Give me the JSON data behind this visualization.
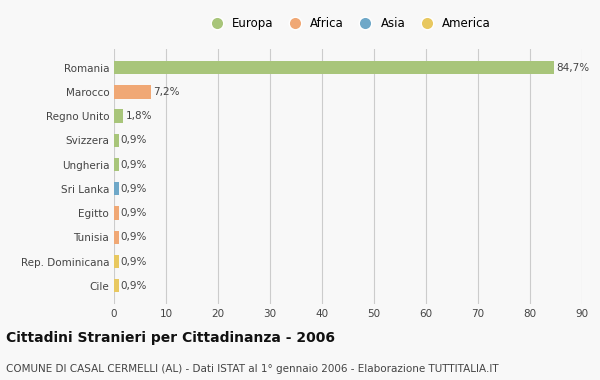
{
  "countries": [
    "Romania",
    "Marocco",
    "Regno Unito",
    "Svizzera",
    "Ungheria",
    "Sri Lanka",
    "Egitto",
    "Tunisia",
    "Rep. Dominicana",
    "Cile"
  ],
  "values": [
    84.7,
    7.2,
    1.8,
    0.9,
    0.9,
    0.9,
    0.9,
    0.9,
    0.9,
    0.9
  ],
  "labels": [
    "84,7%",
    "7,2%",
    "1,8%",
    "0,9%",
    "0,9%",
    "0,9%",
    "0,9%",
    "0,9%",
    "0,9%",
    "0,9%"
  ],
  "colors": [
    "#a8c57a",
    "#f0a875",
    "#a8c57a",
    "#a8c57a",
    "#a8c57a",
    "#6fa8c8",
    "#f0a875",
    "#f0a875",
    "#e8c860",
    "#e8c860"
  ],
  "legend_labels": [
    "Europa",
    "Africa",
    "Asia",
    "America"
  ],
  "legend_colors": [
    "#a8c57a",
    "#f0a875",
    "#6fa8c8",
    "#e8c860"
  ],
  "title": "Cittadini Stranieri per Cittadinanza - 2006",
  "subtitle": "COMUNE DI CASAL CERMELLI (AL) - Dati ISTAT al 1° gennaio 2006 - Elaborazione TUTTITALIA.IT",
  "xlim": [
    0,
    90
  ],
  "xticks": [
    0,
    10,
    20,
    30,
    40,
    50,
    60,
    70,
    80,
    90
  ],
  "background_color": "#f8f8f8",
  "grid_color": "#cccccc",
  "bar_height": 0.55,
  "title_fontsize": 10,
  "subtitle_fontsize": 7.5,
  "label_fontsize": 7.5,
  "tick_fontsize": 7.5,
  "legend_fontsize": 8.5
}
